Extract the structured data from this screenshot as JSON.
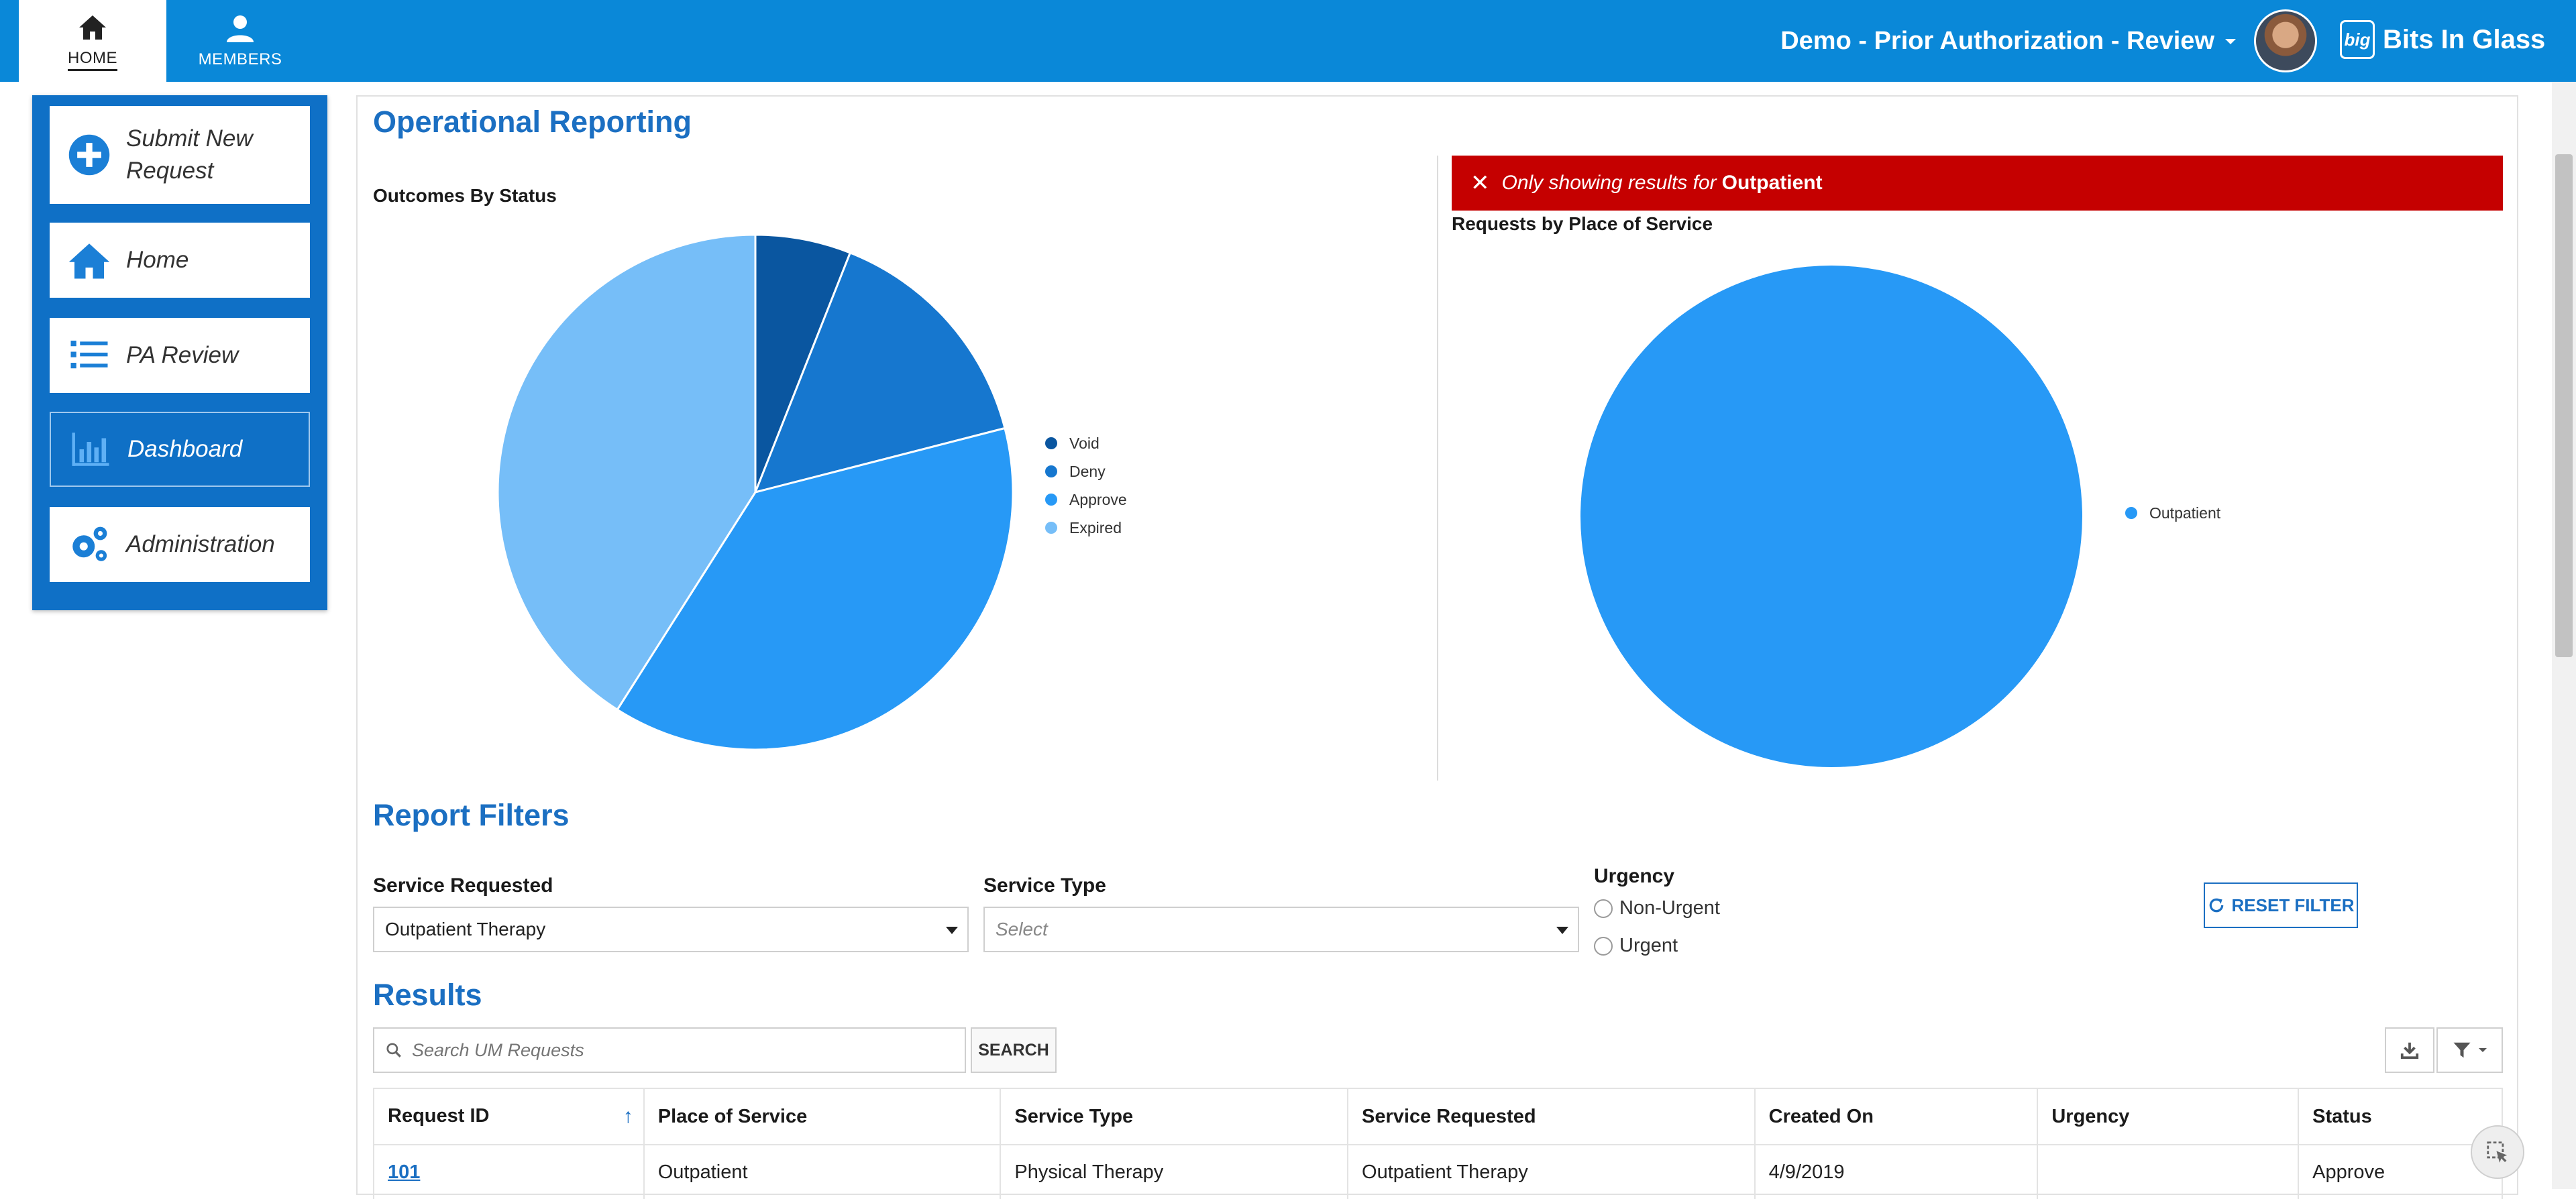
{
  "topbar": {
    "tabs": [
      {
        "label": "HOME",
        "icon": "home-icon"
      },
      {
        "label": "MEMBERS",
        "icon": "person-icon"
      }
    ],
    "app_menu_label": "Demo - Prior Authorization - Review",
    "brand_name": "Bits In Glass",
    "brand_logo_text": "big",
    "colors": {
      "bar": "#0a88d8"
    }
  },
  "sidebar": {
    "items": [
      {
        "label": "Submit New Request",
        "icon": "plus-circle-icon",
        "active": false
      },
      {
        "label": "Home",
        "icon": "home-icon",
        "active": false
      },
      {
        "label": "PA Review",
        "icon": "list-icon",
        "active": false
      },
      {
        "label": "Dashboard",
        "icon": "bar-chart-icon",
        "active": true
      },
      {
        "label": "Administration",
        "icon": "gears-icon",
        "active": false
      }
    ]
  },
  "operational": {
    "title": "Operational Reporting",
    "filter_banner": {
      "prefix": "Only showing results for",
      "value": "Outpatient"
    }
  },
  "chart_data": [
    {
      "type": "pie",
      "title": "Outcomes By Status",
      "legend_position": "right",
      "categories": [
        "Void",
        "Deny",
        "Approve",
        "Expired"
      ],
      "values": [
        6,
        15,
        38,
        41
      ],
      "colors": [
        "#0a56a0",
        "#1677cf",
        "#2799f6",
        "#76bef8"
      ]
    },
    {
      "type": "pie",
      "title": "Requests by Place of Service",
      "legend_position": "right",
      "categories": [
        "Outpatient"
      ],
      "values": [
        100
      ],
      "colors": [
        "#2799f6"
      ]
    }
  ],
  "filters": {
    "title": "Report Filters",
    "service_requested": {
      "label": "Service Requested",
      "value": "Outpatient Therapy"
    },
    "service_type": {
      "label": "Service Type",
      "placeholder": "Select"
    },
    "urgency": {
      "label": "Urgency",
      "options": [
        "Non-Urgent",
        "Urgent"
      ]
    },
    "reset_label": "RESET FILTER"
  },
  "results": {
    "title": "Results",
    "search_placeholder": "Search UM Requests",
    "search_button": "SEARCH",
    "columns": [
      "Request ID",
      "Place of Service",
      "Service Type",
      "Service Requested",
      "Created On",
      "Urgency",
      "Status"
    ],
    "rows": [
      [
        "101",
        "Outpatient",
        "Physical Therapy",
        "Outpatient Therapy",
        "4/9/2019",
        "",
        "Approve"
      ]
    ]
  }
}
